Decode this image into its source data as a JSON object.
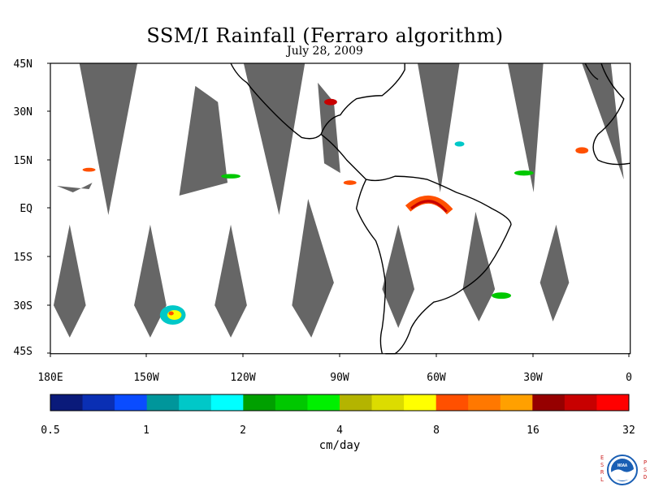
{
  "title": "SSM/I Rainfall (Ferraro algorithm)",
  "subtitle": "July 28, 2009",
  "map": {
    "lat_labels": [
      "45N",
      "30N",
      "15N",
      "EQ",
      "15S",
      "30S",
      "45S"
    ],
    "lon_labels": [
      "180E",
      "150W",
      "120W",
      "90W",
      "60W",
      "30W",
      "0"
    ],
    "lat_range": [
      -45,
      45
    ],
    "lon_range": [
      -180,
      0
    ],
    "no_data_color": "#666666",
    "coastline_color": "#000000"
  },
  "colorbar": {
    "unit": "cm/day",
    "ticks": [
      "0.5",
      "1",
      "2",
      "4",
      "8",
      "16",
      "32"
    ],
    "colors": [
      "#0a1a7a",
      "#0a2fb4",
      "#0a4cff",
      "#00969b",
      "#00c8c8",
      "#00ffff",
      "#00a000",
      "#00c800",
      "#00f000",
      "#b4b400",
      "#dcdc00",
      "#ffff00",
      "#ff5000",
      "#ff7800",
      "#ffa000",
      "#960000",
      "#c80000",
      "#ff0000"
    ]
  },
  "logo": {
    "left_letters": [
      "E",
      "S",
      "R",
      "L"
    ],
    "right_letters": [
      "P",
      "S",
      "D"
    ],
    "center_text": "NOAA"
  }
}
